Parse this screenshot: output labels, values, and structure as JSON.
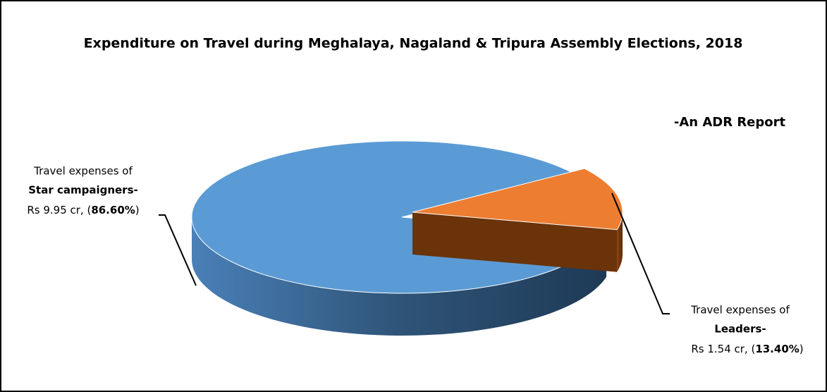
{
  "chart_data": {
    "type": "pie",
    "title": "Expenditure on Travel during Meghalaya, Nagaland & Tripura Assembly Elections, 2018",
    "subtitle": "-An ADR Report",
    "label_prefix": "Travel expenses of",
    "categories": [
      "Star campaigners-",
      "Leaders-"
    ],
    "amount_labels": [
      "Rs 9.95 cr, (",
      "Rs 1.54 cr, ("
    ],
    "values": [
      86.6,
      13.4
    ],
    "value_labels": [
      "86.60%",
      "13.40%"
    ],
    "label_suffix": ")",
    "colors": [
      "#5b9bd5",
      "#ed7d31"
    ]
  }
}
